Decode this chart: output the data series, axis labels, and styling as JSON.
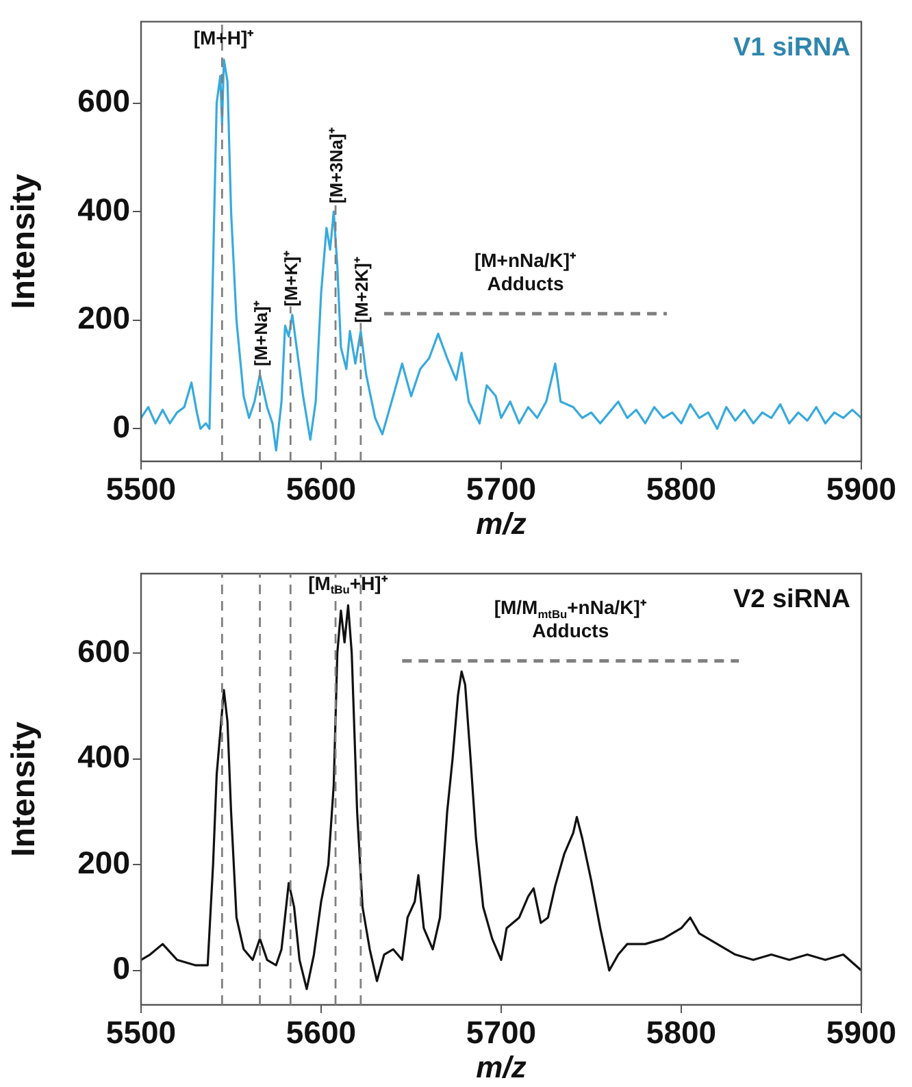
{
  "chart_data": [
    {
      "type": "line",
      "title": "V1 siRNA",
      "xlabel": "m/z",
      "ylabel": "Intensity",
      "xlim": [
        5500,
        5900
      ],
      "xticks": [
        5500,
        5600,
        5700,
        5800,
        5900
      ],
      "ylim": [
        -60,
        750
      ],
      "yticks": [
        0,
        200,
        400,
        600
      ],
      "grid": false,
      "legend": false,
      "marker": "none",
      "series": [
        {
          "color": "#37aadd",
          "line_style": "solid",
          "x": [
            5500,
            5504,
            5508,
            5512,
            5516,
            5520,
            5524,
            5528,
            5531,
            5533,
            5536,
            5538,
            5540,
            5542,
            5544,
            5545,
            5546,
            5548,
            5550,
            5553,
            5557,
            5560,
            5563,
            5566,
            5570,
            5573,
            5575,
            5578,
            5580,
            5582,
            5584,
            5586,
            5590,
            5594,
            5597,
            5600,
            5603,
            5605,
            5607,
            5609,
            5611,
            5614,
            5616,
            5619,
            5622,
            5625,
            5630,
            5634,
            5640,
            5645,
            5650,
            5655,
            5660,
            5665,
            5670,
            5675,
            5678,
            5682,
            5688,
            5692,
            5697,
            5700,
            5705,
            5710,
            5715,
            5720,
            5725,
            5730,
            5733,
            5740,
            5745,
            5750,
            5755,
            5760,
            5765,
            5770,
            5775,
            5780,
            5785,
            5790,
            5795,
            5800,
            5805,
            5810,
            5815,
            5820,
            5825,
            5830,
            5835,
            5840,
            5845,
            5850,
            5855,
            5860,
            5865,
            5870,
            5875,
            5880,
            5885,
            5890,
            5895,
            5900
          ],
          "values": [
            20,
            40,
            10,
            35,
            10,
            30,
            40,
            85,
            30,
            0,
            10,
            0,
            300,
            600,
            650,
            560,
            680,
            640,
            400,
            200,
            60,
            20,
            50,
            100,
            40,
            10,
            -40,
            50,
            190,
            170,
            210,
            160,
            60,
            -20,
            50,
            250,
            370,
            330,
            400,
            300,
            150,
            110,
            180,
            120,
            180,
            100,
            20,
            -10,
            60,
            120,
            60,
            110,
            130,
            175,
            130,
            90,
            140,
            50,
            10,
            80,
            60,
            20,
            50,
            10,
            40,
            20,
            50,
            120,
            50,
            40,
            20,
            30,
            10,
            30,
            50,
            20,
            35,
            10,
            40,
            20,
            30,
            10,
            45,
            20,
            30,
            0,
            40,
            15,
            35,
            10,
            30,
            20,
            45,
            10,
            30,
            15,
            40,
            10,
            30,
            20,
            35,
            20
          ]
        },
        {
          "color": "#808080",
          "line_style": "dashed",
          "x": [
            5635,
            5792
          ],
          "values": [
            212,
            212
          ]
        }
      ],
      "ref_lines": [
        {
          "axis": "x",
          "value": 5545,
          "color": "#808080",
          "line_style": "dashed"
        },
        {
          "axis": "x",
          "value": 5566,
          "label": "[M+Na]⁺",
          "color": "#808080",
          "line_style": "dashed"
        },
        {
          "axis": "x",
          "value": 5583,
          "label": "[M+K]⁺",
          "color": "#808080",
          "line_style": "dashed"
        },
        {
          "axis": "x",
          "value": 5608,
          "label": "[M+3Na]⁺",
          "color": "#808080",
          "line_style": "dashed"
        },
        {
          "axis": "x",
          "value": 5622,
          "label": "[M+2K]⁺",
          "color": "#808080",
          "line_style": "dashed"
        }
      ],
      "annotations": [
        {
          "text": "[M+H]⁺",
          "x": 5546,
          "y": 680
        },
        "[M+nNa/K]⁺\nAdducts"
      ]
    },
    {
      "type": "line",
      "title": "V2 siRNA",
      "xlabel": "m/z",
      "ylabel": "Intensity",
      "xlim": [
        5500,
        5900
      ],
      "xticks": [
        5500,
        5600,
        5700,
        5800,
        5900
      ],
      "ylim": [
        -65,
        750
      ],
      "yticks": [
        0,
        200,
        400,
        600
      ],
      "grid": false,
      "legend": false,
      "marker": "none",
      "series": [
        {
          "color": "#111111",
          "line_style": "solid",
          "x": [
            5500,
            5505,
            5512,
            5520,
            5530,
            5537,
            5540,
            5542,
            5544,
            5546,
            5548,
            5550,
            5553,
            5557,
            5562,
            5566,
            5570,
            5575,
            5578,
            5582,
            5585,
            5588,
            5592,
            5596,
            5600,
            5604,
            5607,
            5609,
            5611,
            5613,
            5615,
            5617,
            5620,
            5623,
            5627,
            5631,
            5635,
            5640,
            5645,
            5648,
            5652,
            5654,
            5657,
            5662,
            5666,
            5670,
            5673,
            5676,
            5678,
            5680,
            5683,
            5686,
            5690,
            5695,
            5700,
            5703,
            5710,
            5715,
            5718,
            5722,
            5726,
            5730,
            5735,
            5740,
            5742,
            5745,
            5750,
            5755,
            5760,
            5765,
            5770,
            5780,
            5790,
            5800,
            5805,
            5810,
            5820,
            5830,
            5840,
            5850,
            5860,
            5870,
            5880,
            5890,
            5900
          ],
          "values": [
            20,
            30,
            50,
            20,
            10,
            10,
            200,
            370,
            450,
            530,
            470,
            300,
            100,
            40,
            20,
            60,
            20,
            10,
            40,
            165,
            120,
            20,
            -35,
            30,
            130,
            200,
            350,
            600,
            680,
            620,
            690,
            600,
            300,
            120,
            40,
            -20,
            30,
            40,
            20,
            100,
            130,
            180,
            80,
            40,
            100,
            300,
            400,
            520,
            565,
            540,
            400,
            250,
            120,
            60,
            20,
            80,
            100,
            140,
            155,
            90,
            100,
            160,
            220,
            260,
            290,
            250,
            170,
            80,
            0,
            30,
            50,
            50,
            60,
            80,
            100,
            70,
            50,
            30,
            20,
            30,
            20,
            30,
            20,
            30,
            0
          ]
        },
        {
          "color": "#808080",
          "line_style": "dashed",
          "x": [
            5645,
            5832
          ],
          "values": [
            585,
            585
          ]
        }
      ],
      "ref_lines": [
        {
          "axis": "x",
          "value": 5545,
          "color": "#808080",
          "line_style": "dashed"
        },
        {
          "axis": "x",
          "value": 5566,
          "color": "#808080",
          "line_style": "dashed"
        },
        {
          "axis": "x",
          "value": 5583,
          "color": "#808080",
          "line_style": "dashed"
        },
        {
          "axis": "x",
          "value": 5608,
          "color": "#808080",
          "line_style": "dashed"
        },
        {
          "axis": "x",
          "value": 5622,
          "color": "#808080",
          "line_style": "dashed"
        }
      ],
      "annotations": [
        {
          "text": "[M$_{tBu}$+H]⁺",
          "x": 5615,
          "y": 690
        },
        "[M/M$_{mtBu}$+nNa/K]⁺\nAdducts"
      ]
    }
  ]
}
